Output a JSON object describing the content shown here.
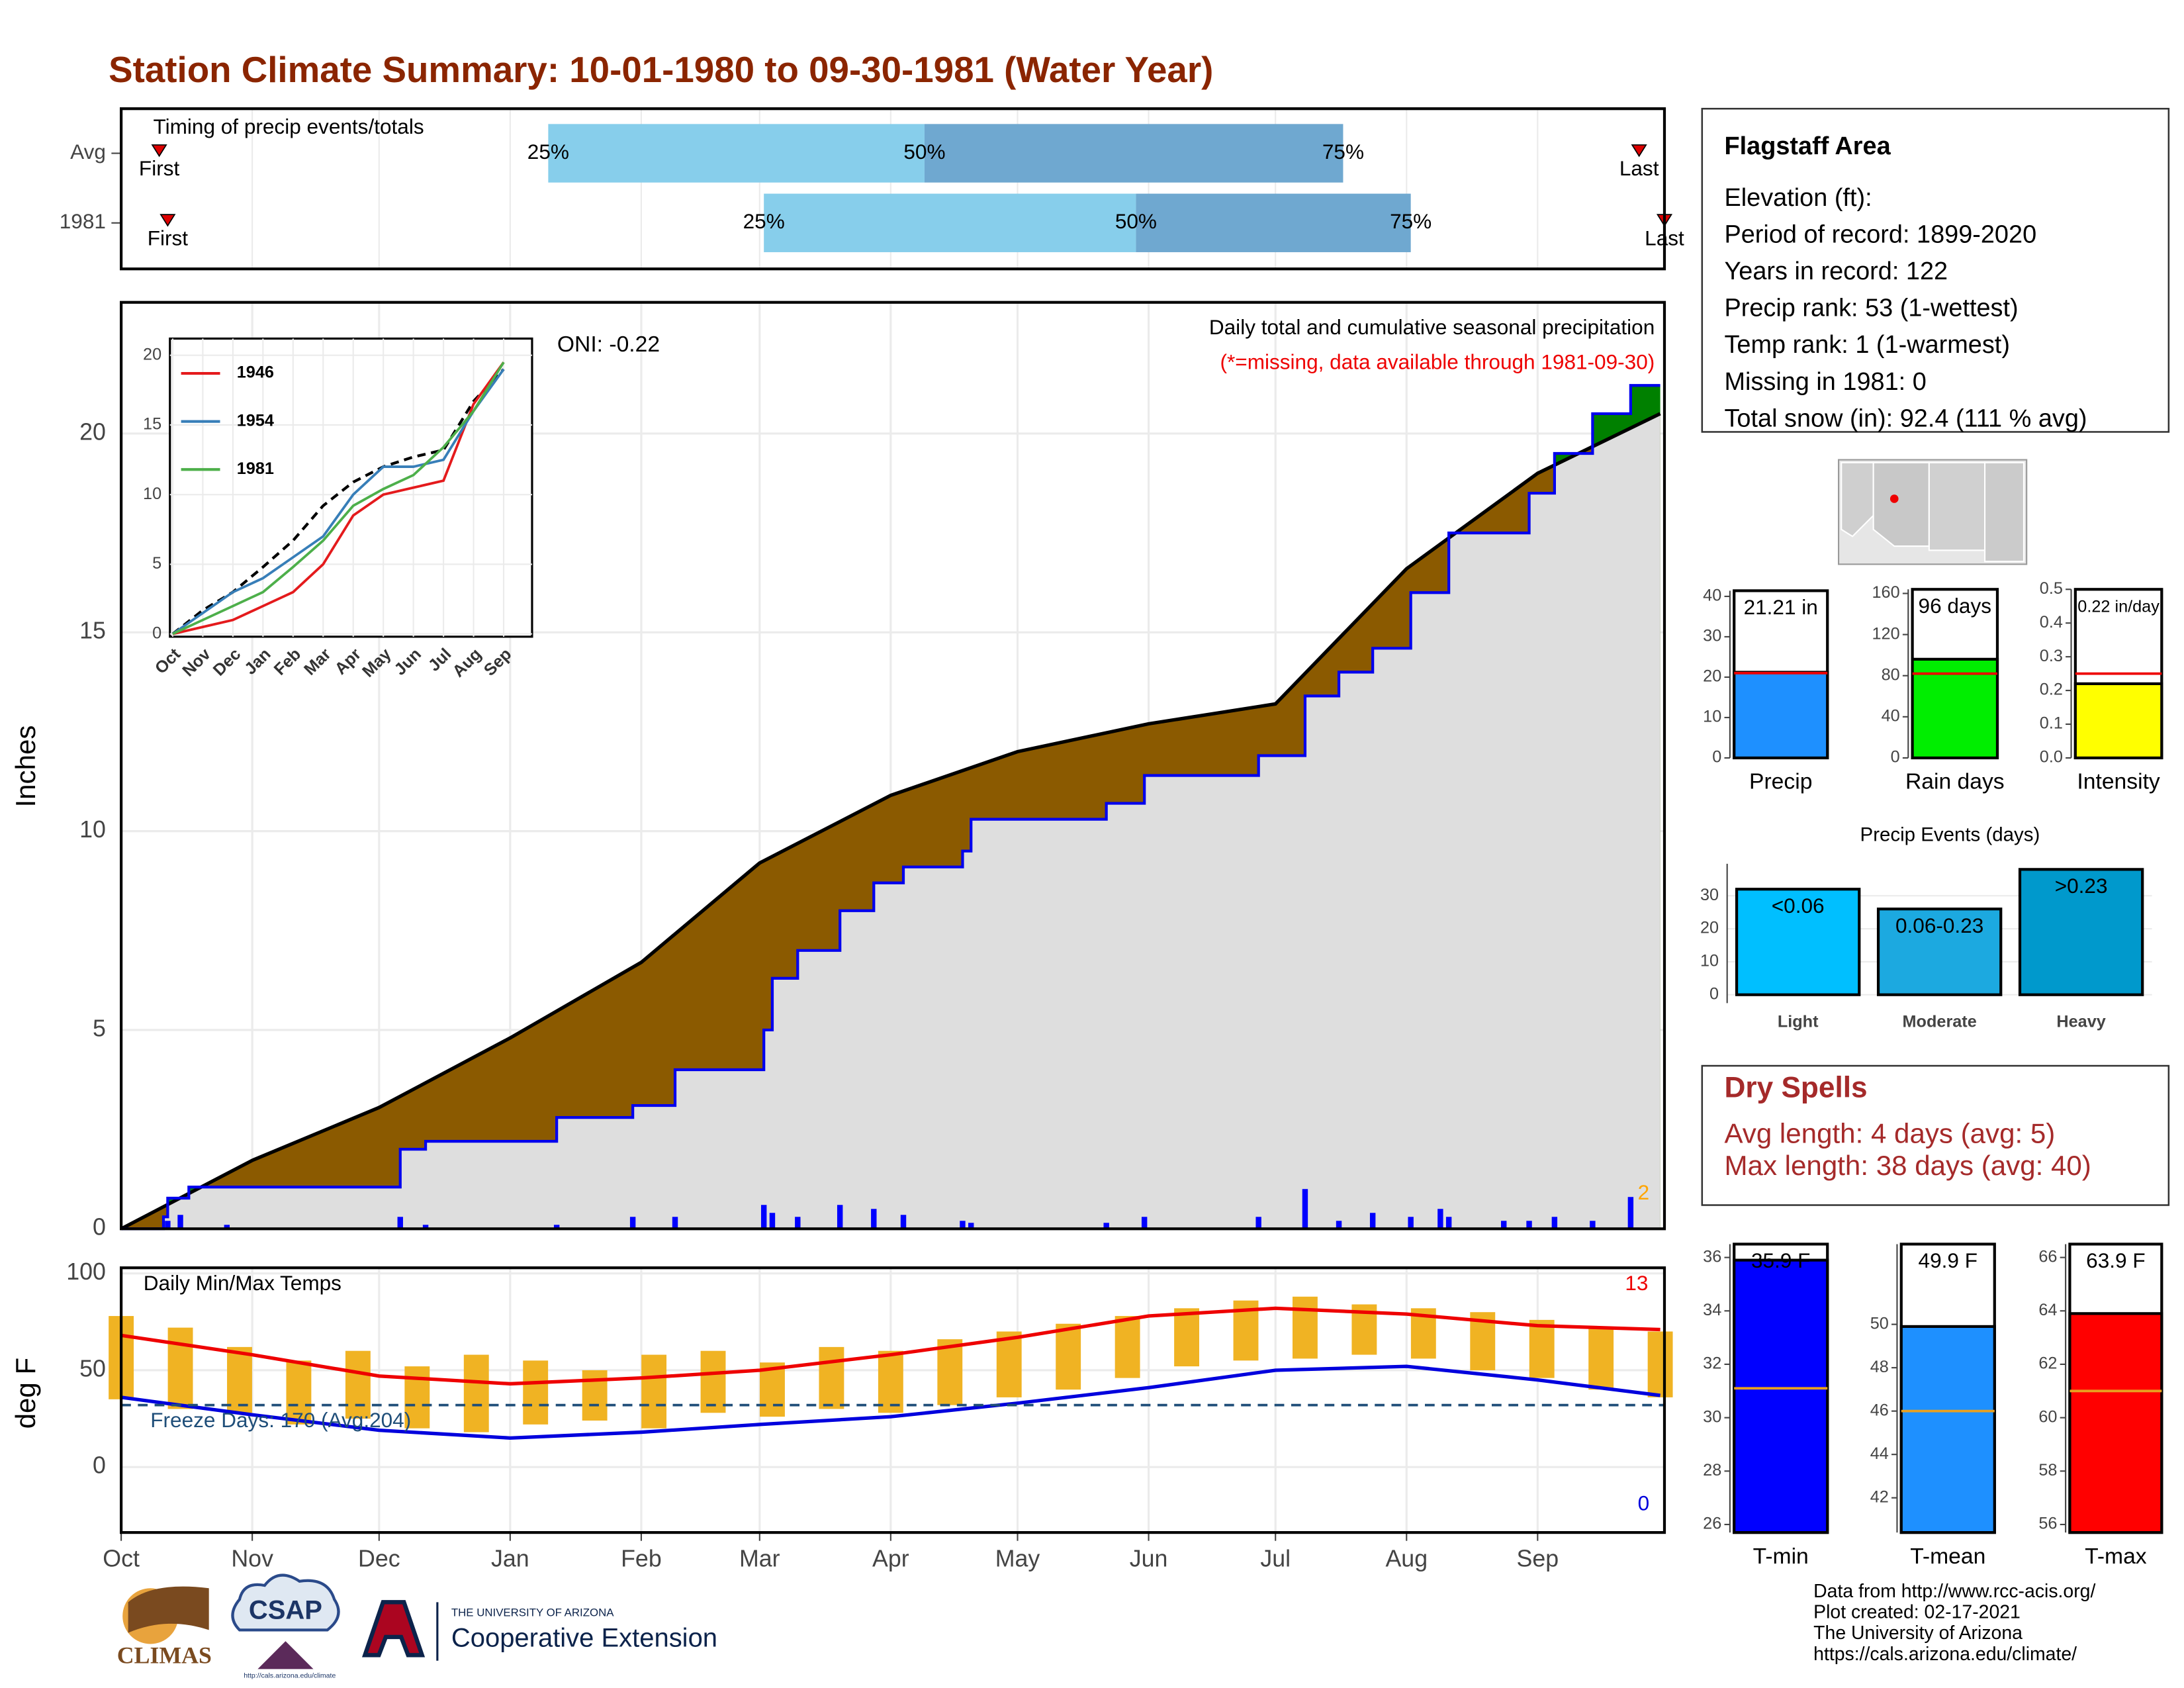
{
  "title": "Station Climate Summary: 10-01-1980 to 09-30-1981 (Water Year)",
  "timing": {
    "label": "Timing of precip events/totals",
    "xlim": [
      0,
      365
    ],
    "labels": {
      "first": "First",
      "last": "Last",
      "p25": "25%",
      "p50": "50%",
      "p75": "75%"
    },
    "colors": {
      "low": "#87ceeb",
      "high": "#6fa8d0",
      "marker": "#dd0000"
    },
    "rows": [
      {
        "name": "Avg",
        "first": 9,
        "p25": 101,
        "p50": 190,
        "p75": 289,
        "last": 359
      },
      {
        "name": "1981",
        "first": 11,
        "p25": 152,
        "p50": 240,
        "p75": 305,
        "last": 365
      }
    ]
  },
  "station": {
    "name": "Flagstaff Area",
    "lines": [
      "Elevation (ft):",
      "Period of record: 1899-2020",
      "Years in record: 122",
      "Precip rank: 53 (1-wettest)",
      "Temp rank: 1 (1-warmest)",
      "Missing in 1981: 0",
      "Total snow (in): 92.4 (111 % avg)"
    ]
  },
  "dry_spells": {
    "title": "Dry Spells",
    "lines": [
      "Avg length: 4 days (avg: 5)",
      "Max length: 38 days (avg: 40)"
    ]
  },
  "footer": [
    "Data from http://www.rcc-acis.org/",
    "Plot created: 02-17-2021",
    "The University of Arizona",
    "https://cals.arizona.edu/climate/"
  ],
  "logos": {
    "climas": "CLIMAS",
    "csap": "CSAP",
    "csap_url": "http://cals.arizona.edu/climate",
    "ua": "THE UNIVERSITY OF ARIZONA",
    "extension": "Cooperative Extension"
  },
  "chart_data": [
    {
      "type": "area",
      "ylabel": "Inches",
      "ylim": [
        0,
        23.3
      ],
      "yticks": [
        0,
        5,
        10,
        15,
        20
      ],
      "xlim": [
        0,
        365
      ],
      "grid": true,
      "annotations": {
        "oni": "ONI: -0.22",
        "subtitle": "Daily total and cumulative seasonal precipitation",
        "note": "(*=missing, data available through 1981-09-30)",
        "count": "2"
      },
      "colors": {
        "below": "#8b5a00",
        "above": "#008000",
        "background": "#dedede",
        "note": "#ee0000",
        "count": "#ffa500"
      },
      "normal": {
        "color": "#000000",
        "x": [
          0,
          31,
          61,
          92,
          123,
          151,
          182,
          212,
          243,
          273,
          304,
          335,
          364
        ],
        "values": [
          0,
          1.72,
          3.05,
          4.8,
          6.7,
          9.2,
          10.9,
          12.0,
          12.7,
          13.2,
          16.6,
          19.0,
          20.5
        ]
      },
      "observed": {
        "color": "#0000ee",
        "x": [
          0,
          10,
          11,
          16,
          66,
          72,
          103,
          121,
          131,
          152,
          154,
          160,
          170,
          178,
          185,
          199,
          201,
          233,
          242,
          269,
          280,
          288,
          296,
          305,
          314,
          333,
          339,
          348,
          357,
          364
        ],
        "values": [
          0,
          0.3,
          0.77,
          1.05,
          2.0,
          2.2,
          2.8,
          3.1,
          4.0,
          5.0,
          6.3,
          7.0,
          8.0,
          8.7,
          9.1,
          9.5,
          10.3,
          10.7,
          11.4,
          11.9,
          13.4,
          14.0,
          14.6,
          16.0,
          17.5,
          18.5,
          19.5,
          20.5,
          21.21,
          21.21
        ]
      },
      "daily": {
        "color": "#0000ff",
        "x": [
          11,
          14,
          25,
          66,
          72,
          103,
          121,
          131,
          152,
          154,
          160,
          170,
          178,
          185,
          199,
          201,
          233,
          242,
          269,
          280,
          288,
          296,
          305,
          312,
          314,
          327,
          333,
          339,
          348,
          357
        ],
        "values": [
          0.2,
          0.35,
          0.1,
          0.3,
          0.1,
          0.1,
          0.3,
          0.3,
          0.6,
          0.4,
          0.3,
          0.6,
          0.5,
          0.35,
          0.2,
          0.15,
          0.15,
          0.3,
          0.3,
          1.0,
          0.2,
          0.4,
          0.3,
          0.5,
          0.3,
          0.2,
          0.2,
          0.3,
          0.2,
          0.8
        ]
      }
    },
    {
      "type": "line",
      "categories": [
        "Oct",
        "Nov",
        "Dec",
        "Jan",
        "Feb",
        "Mar",
        "Apr",
        "May",
        "Jun",
        "Jul",
        "Aug",
        "Sep"
      ],
      "ylim": [
        0,
        21.2
      ],
      "yticks": [
        0,
        5,
        10,
        15,
        20
      ],
      "grid": true,
      "series": [
        {
          "name": "1946",
          "color": "#e41a1c",
          "values": [
            0,
            0.5,
            1.0,
            2.0,
            3.0,
            5.0,
            8.5,
            10.0,
            10.5,
            11.0,
            16.5,
            19.5
          ]
        },
        {
          "name": "1954",
          "color": "#377eb8",
          "values": [
            0,
            1.5,
            3.0,
            4.0,
            5.5,
            7.0,
            10.0,
            12.0,
            12.0,
            12.5,
            16.0,
            19.0
          ]
        },
        {
          "name": "1981",
          "color": "#4daf4a",
          "values": [
            0,
            1.0,
            2.0,
            3.0,
            4.8,
            6.7,
            9.2,
            10.4,
            11.4,
            13.4,
            16.0,
            19.5
          ]
        }
      ],
      "normal": {
        "color": "#000000",
        "values": [
          0,
          1.7,
          3.0,
          4.8,
          6.7,
          9.2,
          10.9,
          12.0,
          12.7,
          13.2,
          16.7,
          19.0
        ]
      }
    },
    {
      "type": "range",
      "title": "Daily Min/Max Temps",
      "ylabel": "deg F",
      "ylim": [
        -33.8,
        102.9
      ],
      "yticks": [
        0,
        50,
        100
      ],
      "xlim": [
        0,
        365
      ],
      "grid": true,
      "xticks": [
        {
          "value": 0,
          "label": "Oct"
        },
        {
          "value": 31,
          "label": "Nov"
        },
        {
          "value": 61,
          "label": "Dec"
        },
        {
          "value": 92,
          "label": "Jan"
        },
        {
          "value": 123,
          "label": "Feb"
        },
        {
          "value": 151,
          "label": "Mar"
        },
        {
          "value": 182,
          "label": "Apr"
        },
        {
          "value": 212,
          "label": "May"
        },
        {
          "value": 243,
          "label": "Jun"
        },
        {
          "value": 273,
          "label": "Jul"
        },
        {
          "value": 304,
          "label": "Aug"
        },
        {
          "value": 335,
          "label": "Sep"
        }
      ],
      "bars": {
        "color": "#f0b323",
        "x": [
          0,
          14,
          28,
          42,
          56,
          70,
          84,
          98,
          112,
          126,
          140,
          154,
          168,
          182,
          196,
          210,
          224,
          238,
          252,
          266,
          280,
          294,
          308,
          322,
          336,
          350,
          364
        ],
        "max": [
          78,
          72,
          62,
          55,
          60,
          52,
          58,
          55,
          50,
          58,
          60,
          54,
          62,
          60,
          66,
          70,
          74,
          78,
          82,
          86,
          88,
          84,
          82,
          80,
          76,
          72,
          70
        ],
        "min": [
          35,
          30,
          28,
          22,
          25,
          20,
          18,
          22,
          24,
          20,
          28,
          26,
          30,
          28,
          32,
          36,
          40,
          46,
          52,
          55,
          56,
          58,
          56,
          50,
          46,
          40,
          36
        ]
      },
      "normal_max": {
        "color": "#ee0000",
        "x": [
          0,
          31,
          61,
          92,
          123,
          151,
          182,
          212,
          243,
          273,
          304,
          335,
          364
        ],
        "values": [
          68,
          58,
          47,
          43,
          46,
          50,
          58,
          67,
          78,
          82,
          79,
          73,
          71
        ]
      },
      "normal_min": {
        "color": "#0000dd",
        "x": [
          0,
          31,
          61,
          92,
          123,
          151,
          182,
          212,
          243,
          273,
          304,
          335,
          364
        ],
        "values": [
          36,
          27,
          19,
          15,
          18,
          22,
          26,
          33,
          41,
          50,
          52,
          45,
          37
        ]
      },
      "freeze": {
        "value": 32,
        "color": "#1f4e79",
        "label": "Freeze Days: 170 (Avg:204)"
      },
      "annotations": {
        "hot": "13",
        "cold": "0"
      }
    },
    {
      "type": "bar",
      "categories": [
        "Precip"
      ],
      "values": [
        21.21
      ],
      "value_labels": [
        "21.21 in"
      ],
      "average": 21,
      "color": "#1e90ff",
      "ylim": [
        0,
        41.4
      ],
      "yticks": [
        0,
        10,
        20,
        30,
        40
      ]
    },
    {
      "type": "bar",
      "categories": [
        "Rain days"
      ],
      "values": [
        96
      ],
      "value_labels": [
        "96 days"
      ],
      "average": 82,
      "color": "#00ee00",
      "ylim": [
        0,
        164
      ],
      "yticks": [
        0,
        40,
        80,
        120,
        160
      ]
    },
    {
      "type": "bar",
      "categories": [
        "Intensity"
      ],
      "values": [
        0.22
      ],
      "value_labels": [
        "0.22 in/day"
      ],
      "average": 0.25,
      "color": "#ffff00",
      "ylim": [
        0,
        0.5
      ],
      "yticks": [
        {
          "value": 0,
          "label": "0.0"
        },
        0.1,
        0.2,
        0.3,
        0.4,
        0.5
      ]
    },
    {
      "type": "events",
      "title": "Precip Events (days)",
      "categories": [
        "Light",
        "Moderate",
        "Heavy"
      ],
      "ranges": [
        "<0.06",
        "0.06-0.23",
        ">0.23"
      ],
      "values": [
        32,
        26,
        38
      ],
      "colors": [
        "#00bfff",
        "#1ca9e0",
        "#0099cc"
      ],
      "ylim": [
        0,
        39.7
      ],
      "yticks": [
        0,
        10,
        20,
        30
      ],
      "grid": true
    },
    {
      "type": "bar",
      "categories": [
        "T-min"
      ],
      "values": [
        35.9
      ],
      "value_labels": [
        "35.9 F"
      ],
      "average": 31.1,
      "color": "#0000ff",
      "avg_color": "#e8a020",
      "ylim": [
        25.7,
        36.5
      ],
      "yticks": [
        26,
        28,
        30,
        32,
        34,
        36
      ]
    },
    {
      "type": "bar",
      "categories": [
        "T-mean"
      ],
      "values": [
        49.9
      ],
      "value_labels": [
        "49.9 F"
      ],
      "average": 46,
      "color": "#1e90ff",
      "avg_color": "#e8a020",
      "ylim": [
        40.4,
        53.7
      ],
      "yticks": [
        42,
        44,
        46,
        48,
        50
      ]
    },
    {
      "type": "bar",
      "categories": [
        "T-max"
      ],
      "values": [
        63.9
      ],
      "value_labels": [
        "63.9 F"
      ],
      "average": 61,
      "color": "#ff0000",
      "avg_color": "#e8a020",
      "ylim": [
        55.7,
        66.5
      ],
      "yticks": [
        56,
        58,
        60,
        62,
        64,
        66
      ]
    }
  ]
}
